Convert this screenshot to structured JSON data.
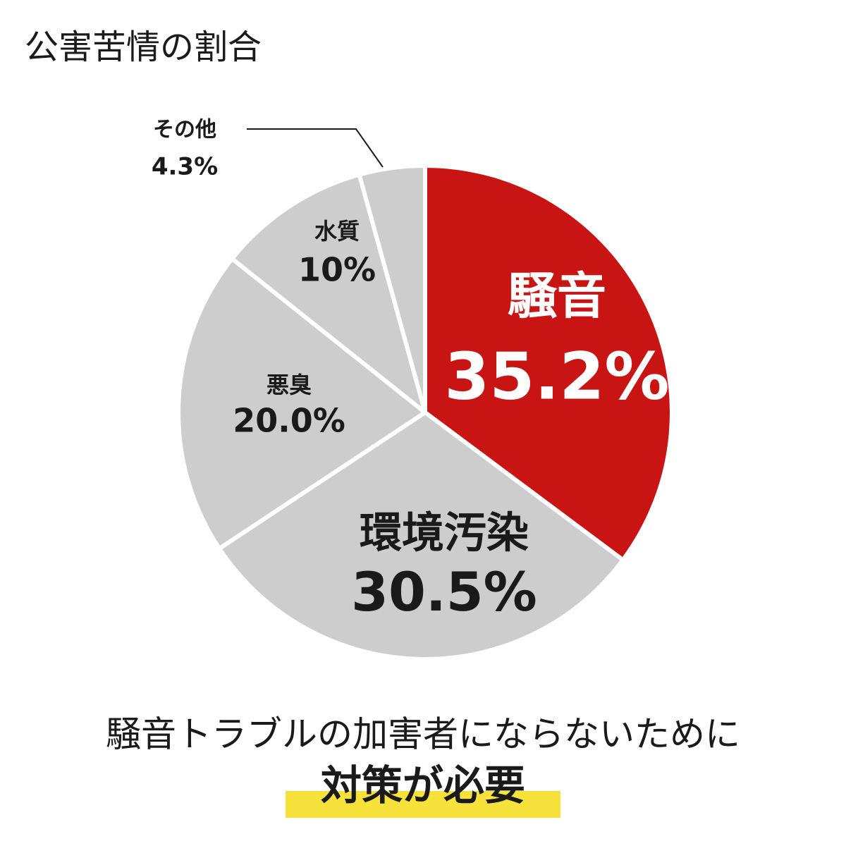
{
  "chart_data": {
    "type": "pie",
    "title": "公害苦情の割合",
    "categories": [
      "騒音",
      "環境汚染",
      "悪臭",
      "水質",
      "その他"
    ],
    "values": [
      35.2,
      30.5,
      20.0,
      10,
      4.3
    ],
    "value_labels": [
      "35.2%",
      "30.5%",
      "20.0%",
      "10%",
      "4.3%"
    ],
    "colors": [
      "#c91414",
      "#cdcdcd",
      "#cdcdcd",
      "#cdcdcd",
      "#cdcdcd"
    ],
    "annotations": [
      "騒音トラブルの加害者にならないために",
      "対策が必要"
    ]
  }
}
